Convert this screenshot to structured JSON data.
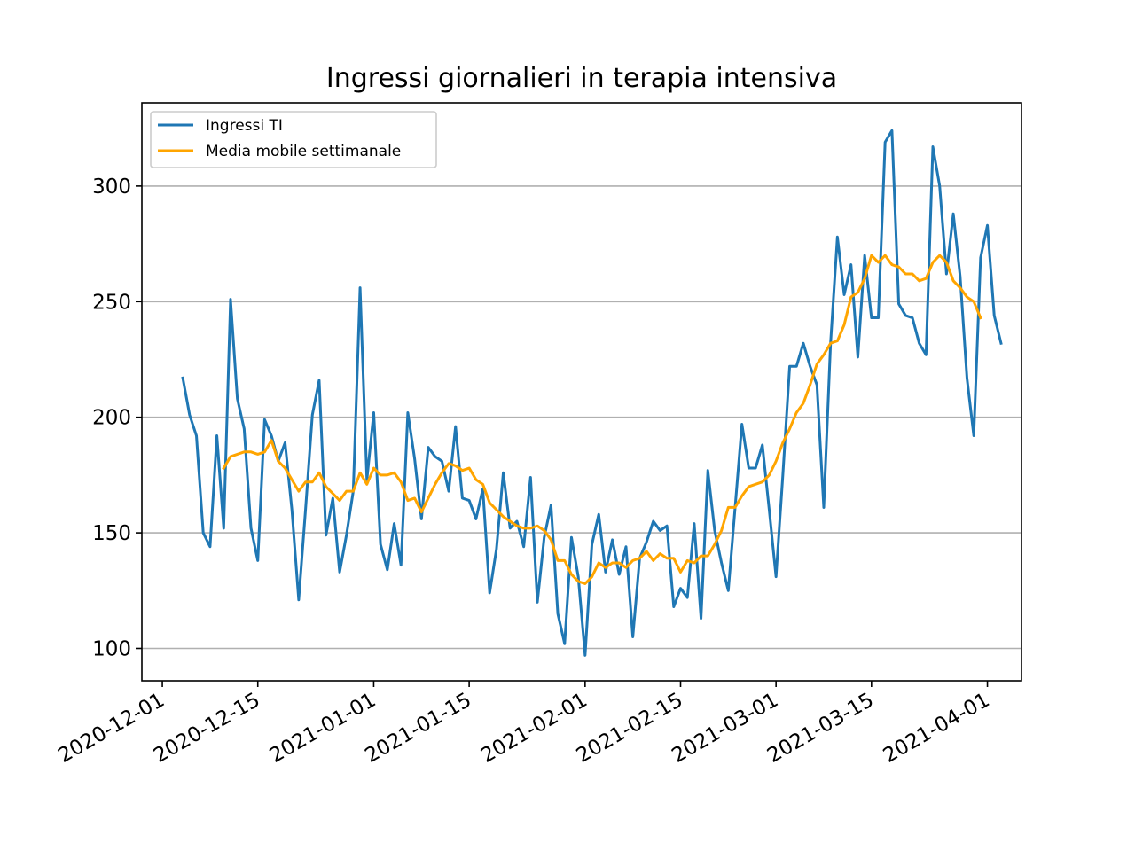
{
  "chart_data": {
    "type": "line",
    "title": "Ingressi giornalieri in terapia intensiva",
    "xlabel": "",
    "ylabel": "",
    "x_axis": "date",
    "xlim": [
      "2020-11-28",
      "2021-04-06"
    ],
    "ylim": [
      86,
      336
    ],
    "y_ticks": [
      100,
      150,
      200,
      250,
      300
    ],
    "x_ticks": [
      "2020-12-01",
      "2020-12-15",
      "2021-01-01",
      "2021-01-15",
      "2021-02-01",
      "2021-02-15",
      "2021-03-01",
      "2021-03-15",
      "2021-04-01"
    ],
    "grid": "horizontal",
    "legend_position": "top-left",
    "start_date": "2020-12-04",
    "series": [
      {
        "name": "Ingressi TI",
        "color": "#1f77b4",
        "values": [
          217,
          201,
          192,
          150,
          144,
          192,
          152,
          251,
          208,
          195,
          152,
          138,
          199,
          192,
          181,
          189,
          160,
          121,
          160,
          201,
          216,
          149,
          165,
          133,
          149,
          168,
          256,
          173,
          202,
          145,
          134,
          154,
          136,
          202,
          182,
          156,
          187,
          183,
          181,
          168,
          196,
          165,
          164,
          156,
          169,
          124,
          143,
          176,
          152,
          155,
          144,
          174,
          120,
          148,
          162,
          115,
          102,
          148,
          131,
          97,
          145,
          158,
          133,
          147,
          132,
          144,
          105,
          139,
          146,
          155,
          151,
          153,
          118,
          126,
          122,
          154,
          113,
          177,
          151,
          137,
          125,
          161,
          197,
          178,
          178,
          188,
          160,
          131,
          175,
          222,
          222,
          232,
          222,
          214,
          161,
          232,
          278,
          253,
          266,
          226,
          270,
          243,
          243,
          319,
          324,
          249,
          244,
          243,
          232,
          227,
          317,
          300,
          262,
          288,
          261,
          217,
          192,
          269,
          283,
          244,
          232
        ]
      },
      {
        "name": "Media mobile settimanale",
        "color": "#ffa500",
        "start_index": 6,
        "values": [
          178,
          183,
          184,
          185,
          185,
          184,
          185,
          190,
          181,
          178,
          173,
          168,
          172,
          172,
          176,
          170,
          167,
          164,
          168,
          168,
          176,
          171,
          178,
          175,
          175,
          176,
          172,
          164,
          165,
          159,
          165,
          171,
          176,
          180,
          179,
          177,
          178,
          173,
          171,
          163,
          160,
          157,
          155,
          153,
          152,
          152,
          153,
          151,
          147,
          138,
          138,
          132,
          129,
          128,
          131,
          137,
          135,
          137,
          137,
          135,
          138,
          139,
          142,
          138,
          141,
          139,
          139,
          133,
          138,
          137,
          140,
          140,
          145,
          151,
          161,
          161,
          166,
          170,
          171,
          172,
          175,
          181,
          189,
          195,
          202,
          206,
          214,
          223,
          227,
          232,
          233,
          240,
          252,
          254,
          260,
          270,
          267,
          270,
          266,
          265,
          262,
          262,
          259,
          260,
          267,
          270,
          267,
          259,
          256,
          252,
          250,
          243
        ]
      }
    ]
  }
}
